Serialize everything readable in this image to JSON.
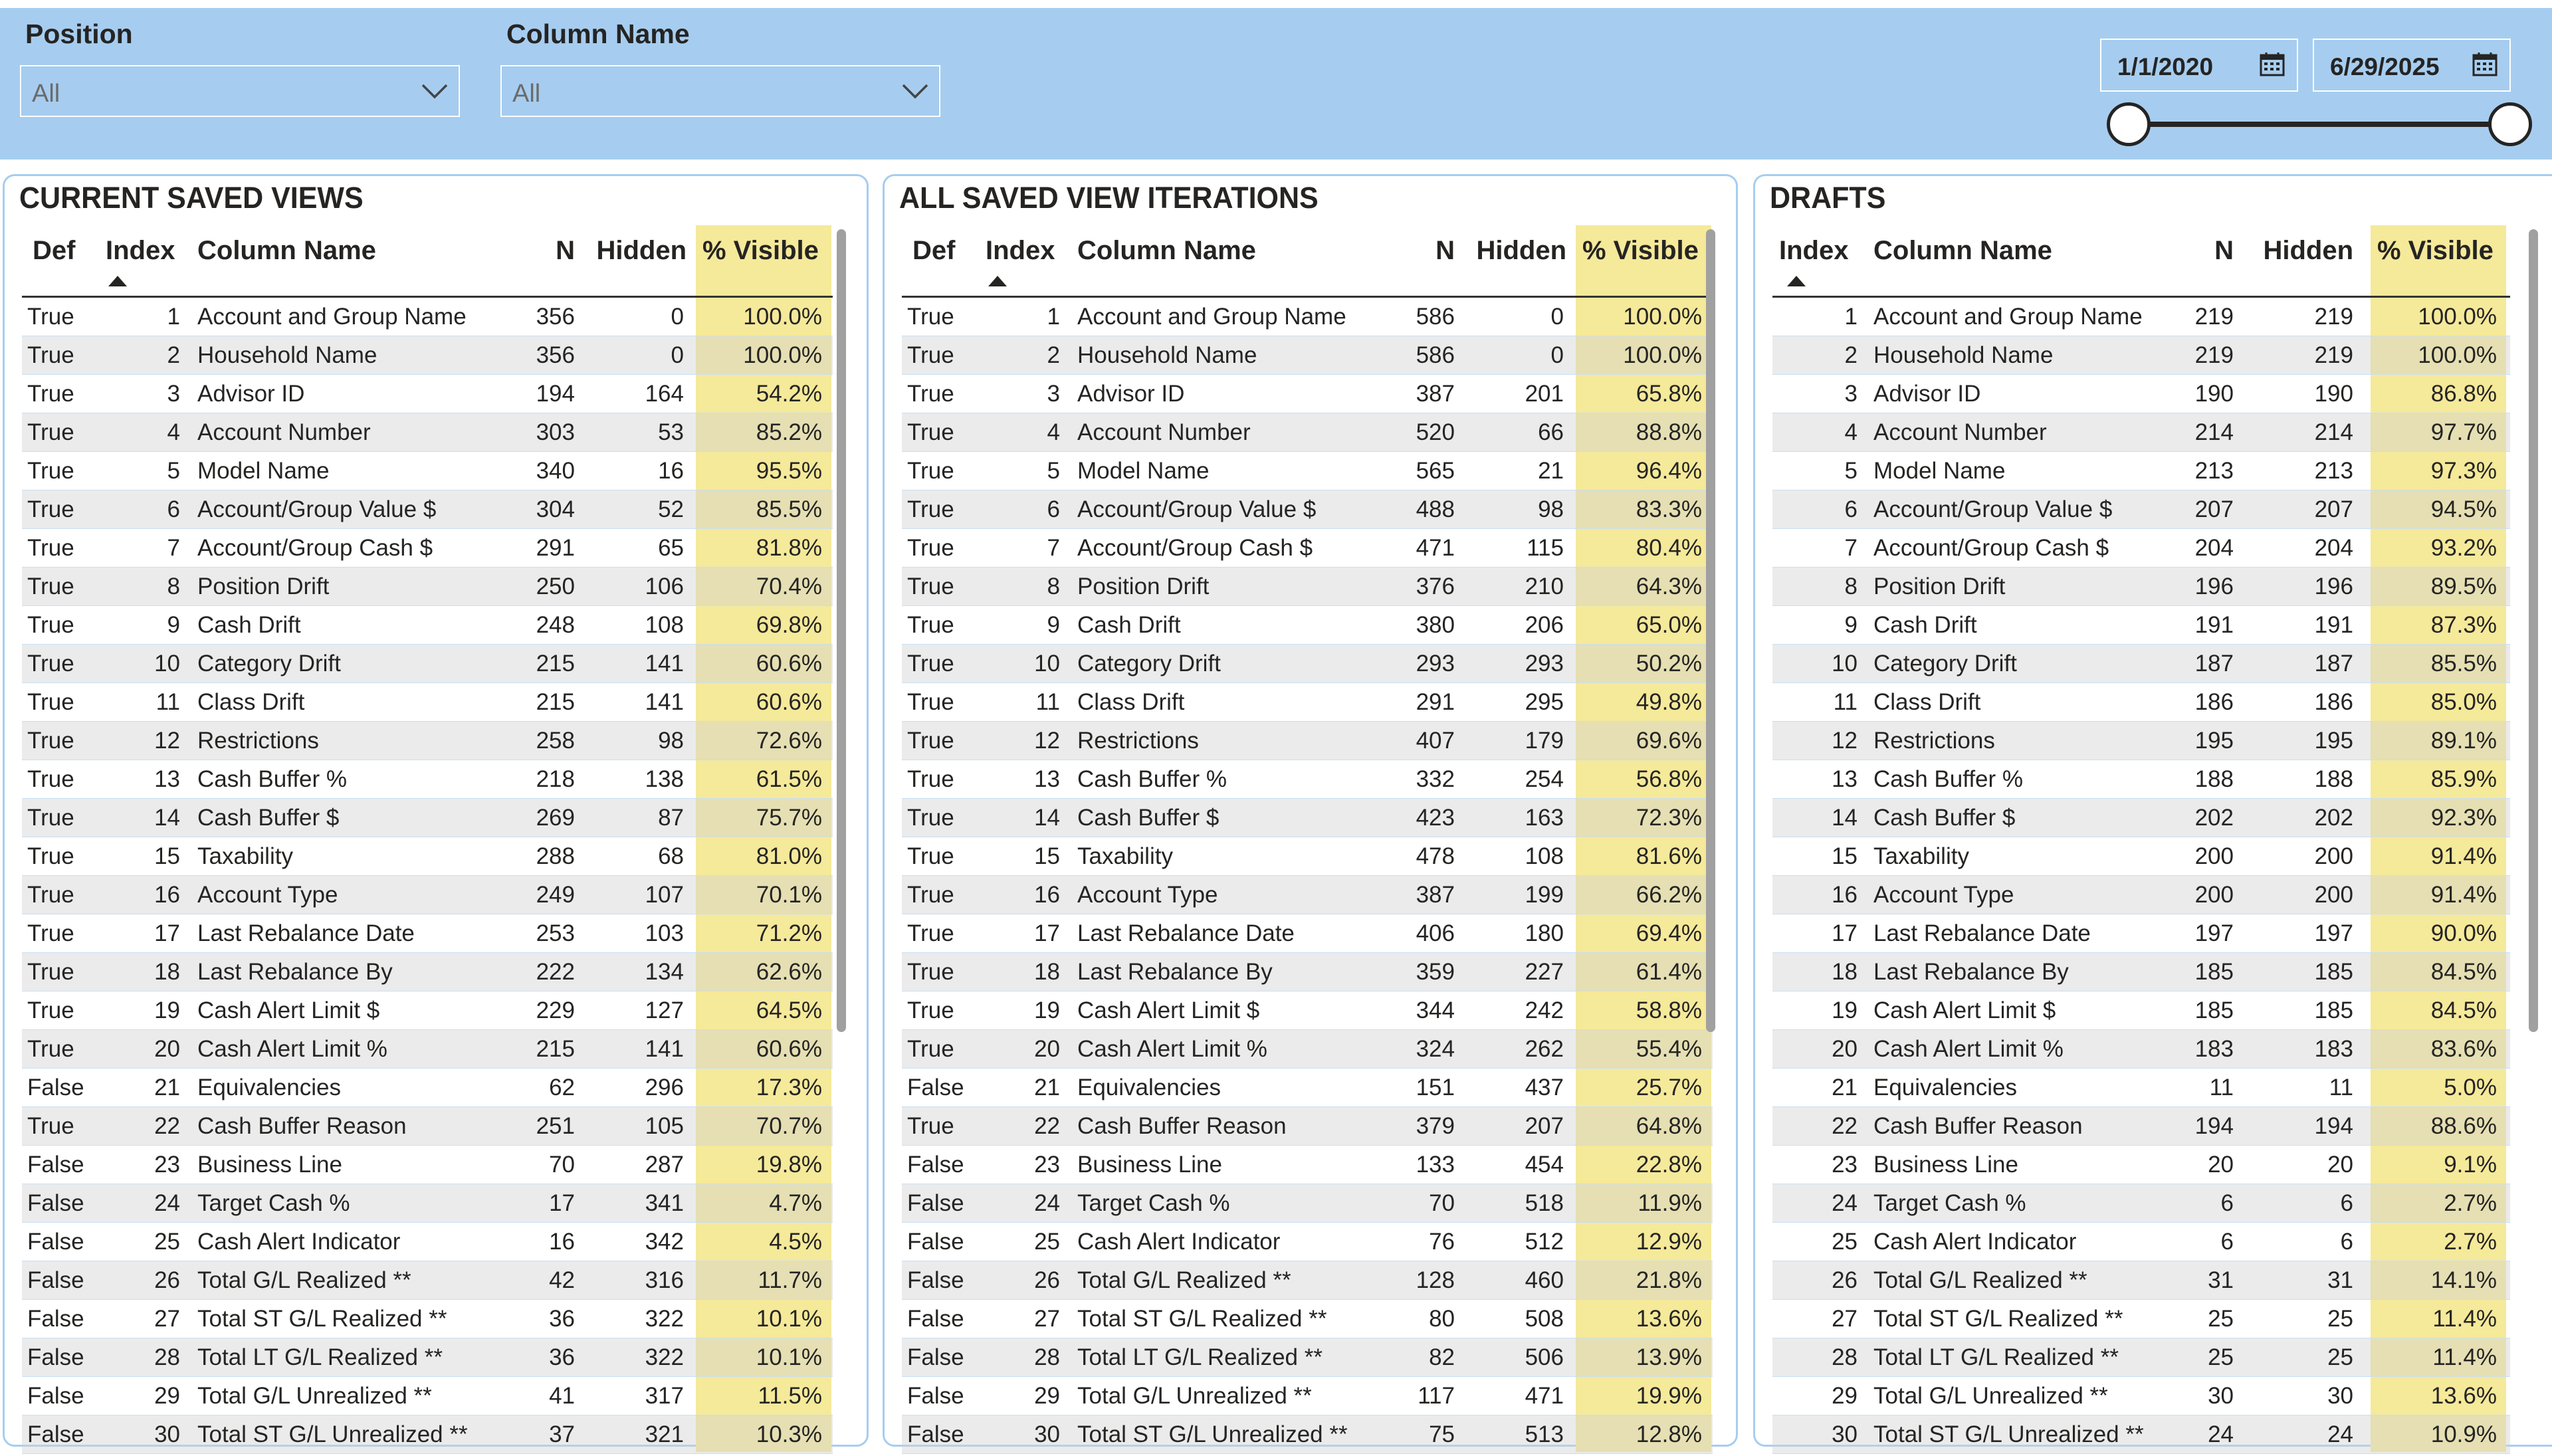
{
  "filters": {
    "position": {
      "label": "Position",
      "value": "All"
    },
    "column_name": {
      "label": "Column Name",
      "value": "All"
    }
  },
  "date_range": {
    "start": "1/1/2020",
    "end": "6/29/2025"
  },
  "colors": {
    "header_bar": "#a6cdf0",
    "visible_highlight": "#f5e99a",
    "alt_row": "#ececec"
  },
  "current_saved_views": {
    "title": "CURRENT SAVED VIEWS",
    "columns": [
      "Def",
      "Index",
      "Column Name",
      "N",
      "Hidden",
      "% Visible"
    ],
    "rows": [
      [
        "True",
        "1",
        "Account and Group Name",
        "356",
        "0",
        "100.0%"
      ],
      [
        "True",
        "2",
        "Household Name",
        "356",
        "0",
        "100.0%"
      ],
      [
        "True",
        "3",
        "Advisor ID",
        "194",
        "164",
        "54.2%"
      ],
      [
        "True",
        "4",
        "Account Number",
        "303",
        "53",
        "85.2%"
      ],
      [
        "True",
        "5",
        "Model Name",
        "340",
        "16",
        "95.5%"
      ],
      [
        "True",
        "6",
        "Account/Group Value $",
        "304",
        "52",
        "85.5%"
      ],
      [
        "True",
        "7",
        "Account/Group Cash $",
        "291",
        "65",
        "81.8%"
      ],
      [
        "True",
        "8",
        "Position Drift",
        "250",
        "106",
        "70.4%"
      ],
      [
        "True",
        "9",
        "Cash Drift",
        "248",
        "108",
        "69.8%"
      ],
      [
        "True",
        "10",
        "Category Drift",
        "215",
        "141",
        "60.6%"
      ],
      [
        "True",
        "11",
        "Class Drift",
        "215",
        "141",
        "60.6%"
      ],
      [
        "True",
        "12",
        "Restrictions",
        "258",
        "98",
        "72.6%"
      ],
      [
        "True",
        "13",
        "Cash Buffer %",
        "218",
        "138",
        "61.5%"
      ],
      [
        "True",
        "14",
        "Cash Buffer $",
        "269",
        "87",
        "75.7%"
      ],
      [
        "True",
        "15",
        "Taxability",
        "288",
        "68",
        "81.0%"
      ],
      [
        "True",
        "16",
        "Account Type",
        "249",
        "107",
        "70.1%"
      ],
      [
        "True",
        "17",
        "Last Rebalance Date",
        "253",
        "103",
        "71.2%"
      ],
      [
        "True",
        "18",
        "Last Rebalance By",
        "222",
        "134",
        "62.6%"
      ],
      [
        "True",
        "19",
        "Cash Alert Limit $",
        "229",
        "127",
        "64.5%"
      ],
      [
        "True",
        "20",
        "Cash Alert Limit %",
        "215",
        "141",
        "60.6%"
      ],
      [
        "False",
        "21",
        "Equivalencies",
        "62",
        "296",
        "17.3%"
      ],
      [
        "True",
        "22",
        "Cash Buffer Reason",
        "251",
        "105",
        "70.7%"
      ],
      [
        "False",
        "23",
        "Business Line",
        "70",
        "287",
        "19.8%"
      ],
      [
        "False",
        "24",
        "Target Cash %",
        "17",
        "341",
        "4.7%"
      ],
      [
        "False",
        "25",
        "Cash Alert Indicator",
        "16",
        "342",
        "4.5%"
      ],
      [
        "False",
        "26",
        "Total G/L Realized **",
        "42",
        "316",
        "11.7%"
      ],
      [
        "False",
        "27",
        "Total ST G/L Realized **",
        "36",
        "322",
        "10.1%"
      ],
      [
        "False",
        "28",
        "Total LT G/L Realized **",
        "36",
        "322",
        "10.1%"
      ],
      [
        "False",
        "29",
        "Total G/L Unrealized **",
        "41",
        "317",
        "11.5%"
      ],
      [
        "False",
        "30",
        "Total ST G/L Unrealized **",
        "37",
        "321",
        "10.3%"
      ]
    ]
  },
  "all_saved_view_iterations": {
    "title": "ALL SAVED VIEW ITERATIONS",
    "columns": [
      "Def",
      "Index",
      "Column Name",
      "N",
      "Hidden",
      "% Visible"
    ],
    "rows": [
      [
        "True",
        "1",
        "Account and Group Name",
        "586",
        "0",
        "100.0%"
      ],
      [
        "True",
        "2",
        "Household Name",
        "586",
        "0",
        "100.0%"
      ],
      [
        "True",
        "3",
        "Advisor ID",
        "387",
        "201",
        "65.8%"
      ],
      [
        "True",
        "4",
        "Account Number",
        "520",
        "66",
        "88.8%"
      ],
      [
        "True",
        "5",
        "Model Name",
        "565",
        "21",
        "96.4%"
      ],
      [
        "True",
        "6",
        "Account/Group Value $",
        "488",
        "98",
        "83.3%"
      ],
      [
        "True",
        "7",
        "Account/Group Cash $",
        "471",
        "115",
        "80.4%"
      ],
      [
        "True",
        "8",
        "Position Drift",
        "376",
        "210",
        "64.3%"
      ],
      [
        "True",
        "9",
        "Cash Drift",
        "380",
        "206",
        "65.0%"
      ],
      [
        "True",
        "10",
        "Category Drift",
        "293",
        "293",
        "50.2%"
      ],
      [
        "True",
        "11",
        "Class Drift",
        "291",
        "295",
        "49.8%"
      ],
      [
        "True",
        "12",
        "Restrictions",
        "407",
        "179",
        "69.6%"
      ],
      [
        "True",
        "13",
        "Cash Buffer %",
        "332",
        "254",
        "56.8%"
      ],
      [
        "True",
        "14",
        "Cash Buffer $",
        "423",
        "163",
        "72.3%"
      ],
      [
        "True",
        "15",
        "Taxability",
        "478",
        "108",
        "81.6%"
      ],
      [
        "True",
        "16",
        "Account Type",
        "387",
        "199",
        "66.2%"
      ],
      [
        "True",
        "17",
        "Last Rebalance Date",
        "406",
        "180",
        "69.4%"
      ],
      [
        "True",
        "18",
        "Last Rebalance By",
        "359",
        "227",
        "61.4%"
      ],
      [
        "True",
        "19",
        "Cash Alert Limit $",
        "344",
        "242",
        "58.8%"
      ],
      [
        "True",
        "20",
        "Cash Alert Limit %",
        "324",
        "262",
        "55.4%"
      ],
      [
        "False",
        "21",
        "Equivalencies",
        "151",
        "437",
        "25.7%"
      ],
      [
        "True",
        "22",
        "Cash Buffer Reason",
        "379",
        "207",
        "64.8%"
      ],
      [
        "False",
        "23",
        "Business Line",
        "133",
        "454",
        "22.8%"
      ],
      [
        "False",
        "24",
        "Target Cash %",
        "70",
        "518",
        "11.9%"
      ],
      [
        "False",
        "25",
        "Cash Alert Indicator",
        "76",
        "512",
        "12.9%"
      ],
      [
        "False",
        "26",
        "Total G/L Realized **",
        "128",
        "460",
        "21.8%"
      ],
      [
        "False",
        "27",
        "Total ST G/L Realized **",
        "80",
        "508",
        "13.6%"
      ],
      [
        "False",
        "28",
        "Total LT G/L Realized **",
        "82",
        "506",
        "13.9%"
      ],
      [
        "False",
        "29",
        "Total G/L Unrealized **",
        "117",
        "471",
        "19.9%"
      ],
      [
        "False",
        "30",
        "Total ST G/L Unrealized **",
        "75",
        "513",
        "12.8%"
      ]
    ]
  },
  "drafts": {
    "title": "DRAFTS",
    "columns": [
      "Index",
      "Column Name",
      "N",
      "Hidden",
      "% Visible"
    ],
    "rows": [
      [
        "1",
        "Account and Group Name",
        "219",
        "219",
        "100.0%"
      ],
      [
        "2",
        "Household Name",
        "219",
        "219",
        "100.0%"
      ],
      [
        "3",
        "Advisor ID",
        "190",
        "190",
        "86.8%"
      ],
      [
        "4",
        "Account Number",
        "214",
        "214",
        "97.7%"
      ],
      [
        "5",
        "Model Name",
        "213",
        "213",
        "97.3%"
      ],
      [
        "6",
        "Account/Group Value $",
        "207",
        "207",
        "94.5%"
      ],
      [
        "7",
        "Account/Group Cash $",
        "204",
        "204",
        "93.2%"
      ],
      [
        "8",
        "Position Drift",
        "196",
        "196",
        "89.5%"
      ],
      [
        "9",
        "Cash Drift",
        "191",
        "191",
        "87.3%"
      ],
      [
        "10",
        "Category Drift",
        "187",
        "187",
        "85.5%"
      ],
      [
        "11",
        "Class Drift",
        "186",
        "186",
        "85.0%"
      ],
      [
        "12",
        "Restrictions",
        "195",
        "195",
        "89.1%"
      ],
      [
        "13",
        "Cash Buffer %",
        "188",
        "188",
        "85.9%"
      ],
      [
        "14",
        "Cash Buffer $",
        "202",
        "202",
        "92.3%"
      ],
      [
        "15",
        "Taxability",
        "200",
        "200",
        "91.4%"
      ],
      [
        "16",
        "Account Type",
        "200",
        "200",
        "91.4%"
      ],
      [
        "17",
        "Last Rebalance Date",
        "197",
        "197",
        "90.0%"
      ],
      [
        "18",
        "Last Rebalance By",
        "185",
        "185",
        "84.5%"
      ],
      [
        "19",
        "Cash Alert Limit $",
        "185",
        "185",
        "84.5%"
      ],
      [
        "20",
        "Cash Alert Limit %",
        "183",
        "183",
        "83.6%"
      ],
      [
        "21",
        "Equivalencies",
        "11",
        "11",
        "5.0%"
      ],
      [
        "22",
        "Cash Buffer Reason",
        "194",
        "194",
        "88.6%"
      ],
      [
        "23",
        "Business Line",
        "20",
        "20",
        "9.1%"
      ],
      [
        "24",
        "Target Cash %",
        "6",
        "6",
        "2.7%"
      ],
      [
        "25",
        "Cash Alert Indicator",
        "6",
        "6",
        "2.7%"
      ],
      [
        "26",
        "Total G/L Realized **",
        "31",
        "31",
        "14.1%"
      ],
      [
        "27",
        "Total ST G/L Realized **",
        "25",
        "25",
        "11.4%"
      ],
      [
        "28",
        "Total LT G/L Realized **",
        "25",
        "25",
        "11.4%"
      ],
      [
        "29",
        "Total G/L Unrealized **",
        "30",
        "30",
        "13.6%"
      ],
      [
        "30",
        "Total ST G/L Unrealized **",
        "24",
        "24",
        "10.9%"
      ]
    ]
  }
}
